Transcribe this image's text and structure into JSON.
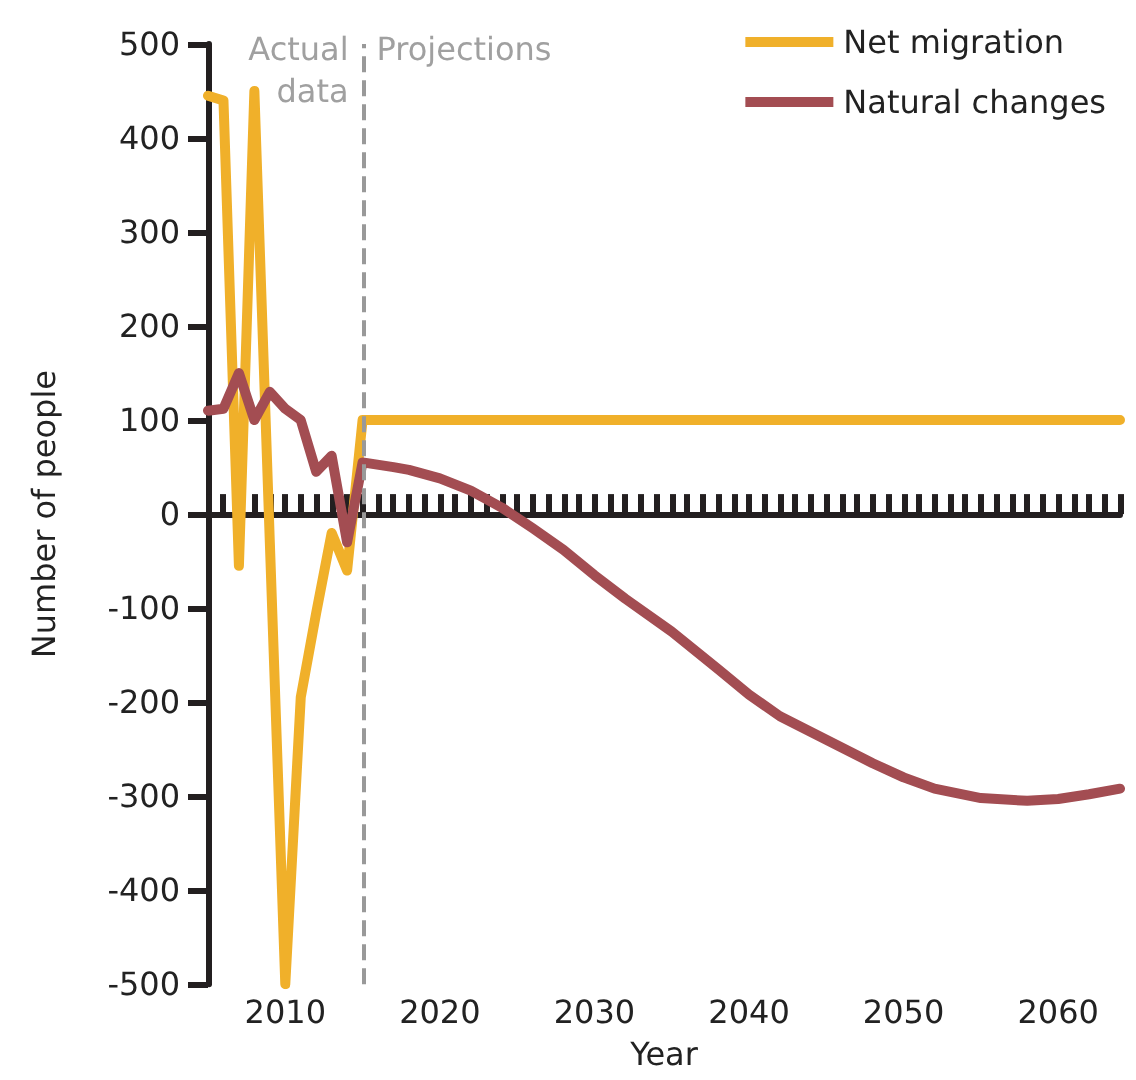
{
  "chart_data": {
    "type": "line",
    "xlabel": "Year",
    "ylabel": "Number of people",
    "xlim": [
      2005,
      2064
    ],
    "ylim": [
      -500,
      500
    ],
    "yticks": [
      -500,
      -400,
      -300,
      -200,
      -100,
      0,
      100,
      200,
      300,
      400,
      500
    ],
    "xticks": [
      {
        "value": 2005,
        "label": null
      },
      {
        "value": 2006,
        "label": null
      },
      {
        "value": 2007,
        "label": null
      },
      {
        "value": 2008,
        "label": null
      },
      {
        "value": 2009,
        "label": null
      },
      2010,
      {
        "value": 2011,
        "label": null
      },
      {
        "value": 2012,
        "label": null
      },
      {
        "value": 2013,
        "label": null
      },
      {
        "value": 2014,
        "label": null
      },
      {
        "value": 2015,
        "label": null
      },
      {
        "value": 2016,
        "label": null
      },
      {
        "value": 2017,
        "label": null
      },
      {
        "value": 2018,
        "label": null
      },
      {
        "value": 2019,
        "label": null
      },
      2020,
      {
        "value": 2021,
        "label": null
      },
      {
        "value": 2022,
        "label": null
      },
      {
        "value": 2023,
        "label": null
      },
      {
        "value": 2024,
        "label": null
      },
      {
        "value": 2025,
        "label": null
      },
      {
        "value": 2026,
        "label": null
      },
      {
        "value": 2027,
        "label": null
      },
      {
        "value": 2028,
        "label": null
      },
      {
        "value": 2029,
        "label": null
      },
      2030,
      {
        "value": 2031,
        "label": null
      },
      {
        "value": 2032,
        "label": null
      },
      {
        "value": 2033,
        "label": null
      },
      {
        "value": 2034,
        "label": null
      },
      {
        "value": 2035,
        "label": null
      },
      {
        "value": 2036,
        "label": null
      },
      {
        "value": 2037,
        "label": null
      },
      {
        "value": 2038,
        "label": null
      },
      {
        "value": 2039,
        "label": null
      },
      2040,
      {
        "value": 2041,
        "label": null
      },
      {
        "value": 2042,
        "label": null
      },
      {
        "value": 2043,
        "label": null
      },
      {
        "value": 2044,
        "label": null
      },
      {
        "value": 2045,
        "label": null
      },
      {
        "value": 2046,
        "label": null
      },
      {
        "value": 2047,
        "label": null
      },
      {
        "value": 2048,
        "label": null
      },
      {
        "value": 2049,
        "label": null
      },
      2050,
      {
        "value": 2051,
        "label": null
      },
      {
        "value": 2052,
        "label": null
      },
      {
        "value": 2053,
        "label": null
      },
      {
        "value": 2054,
        "label": null
      },
      {
        "value": 2055,
        "label": null
      },
      {
        "value": 2056,
        "label": null
      },
      {
        "value": 2057,
        "label": null
      },
      {
        "value": 2058,
        "label": null
      },
      {
        "value": 2059,
        "label": null
      },
      2060,
      {
        "value": 2061,
        "label": null
      },
      {
        "value": 2062,
        "label": null
      },
      {
        "value": 2063,
        "label": null
      },
      {
        "value": 2064,
        "label": null
      }
    ],
    "grid": false,
    "legend": "top right",
    "marker": "none",
    "line_style": "solid",
    "series": [
      {
        "name": "Net migration",
        "color": "#f0b02a",
        "x": [
          2005,
          2006,
          2007,
          2008,
          2009,
          2010,
          2011,
          2012,
          2013,
          2014,
          2015,
          2064
        ],
        "values": [
          445,
          440,
          -55,
          450,
          -30,
          -500,
          -195,
          -105,
          -20,
          -60,
          100,
          100
        ]
      },
      {
        "name": "Natural changes",
        "color": "#a34d52",
        "x": [
          2005,
          2006,
          2007,
          2008,
          2009,
          2010,
          2011,
          2012,
          2013,
          2014,
          2015,
          2017,
          2018,
          2020,
          2022,
          2024,
          2026,
          2028,
          2030,
          2032,
          2035,
          2038,
          2040,
          2042,
          2045,
          2048,
          2050,
          2052,
          2055,
          2058,
          2060,
          2062,
          2064
        ],
        "values": [
          110,
          112,
          150,
          100,
          130,
          112,
          100,
          45,
          62,
          -30,
          55,
          50,
          47,
          38,
          25,
          7,
          -15,
          -38,
          -65,
          -90,
          -125,
          -165,
          -192,
          -215,
          -240,
          -265,
          -280,
          -292,
          -302,
          -305,
          -303,
          -298,
          -292
        ]
      }
    ],
    "ref_lines": [
      {
        "axis": "x",
        "value": 2015,
        "color": "#999999",
        "line_style": "dashed"
      }
    ],
    "annotations": [
      "Actual\ndata",
      "Projections"
    ]
  }
}
